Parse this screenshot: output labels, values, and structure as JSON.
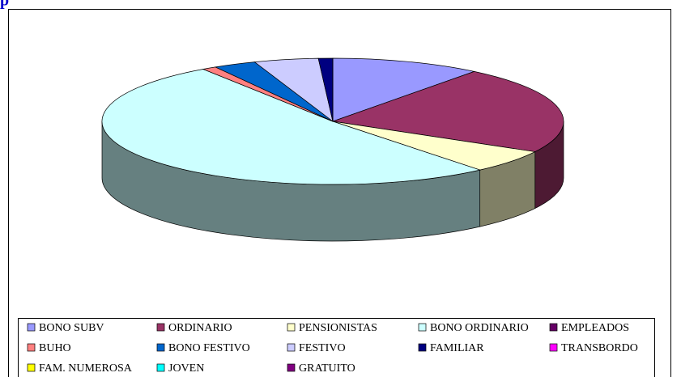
{
  "chart_data": {
    "type": "pie3d",
    "title": "p",
    "categories": [
      "BONO SUBV",
      "ORDINARIO",
      "PENSIONISTAS",
      "BONO ORDINARIO",
      "EMPLEADOS",
      "BUHO",
      "BONO FESTIVO",
      "FESTIVO",
      "FAMILIAR",
      "TRANSBORDO",
      "FAM. NUMEROSA",
      "JOVEN",
      "GRATUITO"
    ],
    "values": [
      10.5,
      22.5,
      6,
      51.5,
      0,
      1,
      3,
      4.5,
      1,
      0,
      0,
      0,
      0
    ],
    "colors": [
      "#9999ff",
      "#993366",
      "#ffffcc",
      "#ccffff",
      "#660066",
      "#ff8080",
      "#0066cc",
      "#ccccff",
      "#000080",
      "#ff00ff",
      "#ffff00",
      "#00ffff",
      "#800080"
    ],
    "legend": "bottom"
  }
}
